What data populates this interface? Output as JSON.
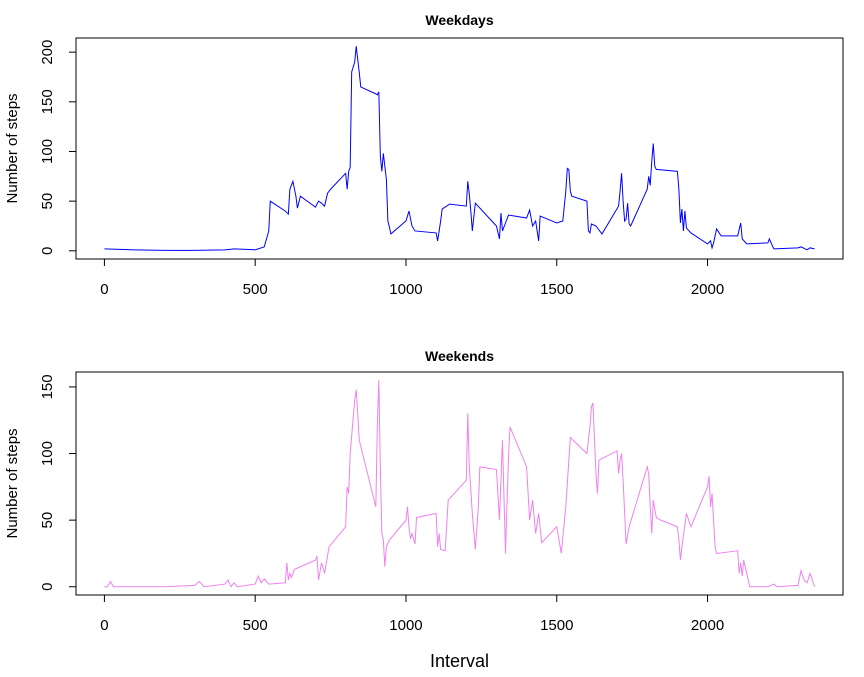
{
  "chart_data": [
    {
      "type": "line",
      "title": "Weekdays",
      "y_label": "Number of steps",
      "color": "#0000ff",
      "x": [
        0,
        100,
        200,
        300,
        400,
        430,
        500,
        530,
        545,
        550,
        600,
        610,
        615,
        625,
        635,
        640,
        650,
        700,
        710,
        720,
        730,
        740,
        750,
        800,
        805,
        810,
        815,
        820,
        830,
        835,
        845,
        850,
        900,
        905,
        910,
        915,
        920,
        925,
        935,
        940,
        945,
        950,
        1000,
        1010,
        1020,
        1030,
        1100,
        1105,
        1115,
        1120,
        1145,
        1200,
        1205,
        1210,
        1215,
        1220,
        1230,
        1300,
        1310,
        1315,
        1320,
        1330,
        1340,
        1400,
        1410,
        1420,
        1430,
        1440,
        1445,
        1500,
        1520,
        1530,
        1535,
        1540,
        1545,
        1550,
        1600,
        1605,
        1610,
        1615,
        1630,
        1650,
        1705,
        1710,
        1715,
        1720,
        1725,
        1730,
        1735,
        1740,
        1745,
        1800,
        1805,
        1810,
        1815,
        1820,
        1825,
        1830,
        1900,
        1905,
        1910,
        1915,
        1920,
        1925,
        1930,
        1945,
        2000,
        2010,
        2015,
        2020,
        2030,
        2045,
        2100,
        2110,
        2115,
        2130,
        2200,
        2205,
        2215,
        2220,
        2300,
        2310,
        2330,
        2340,
        2355
      ],
      "values": [
        2,
        1,
        0.5,
        0.5,
        1,
        2,
        1,
        4,
        20,
        50,
        40,
        37,
        62,
        70,
        55,
        43,
        55,
        44,
        50,
        48,
        45,
        58,
        62,
        78,
        62,
        80,
        84,
        180,
        190,
        206,
        180,
        165,
        158,
        157,
        160,
        95,
        80,
        98,
        72,
        30,
        24,
        17,
        30,
        40,
        25,
        20,
        18,
        10,
        30,
        42,
        47,
        45,
        70,
        57,
        40,
        20,
        48,
        25,
        12,
        38,
        20,
        28,
        36,
        33,
        41,
        25,
        30,
        10,
        35,
        28,
        30,
        60,
        83,
        82,
        60,
        55,
        50,
        20,
        18,
        27,
        25,
        17,
        45,
        60,
        78,
        50,
        30,
        32,
        48,
        27,
        25,
        62,
        75,
        66,
        90,
        108,
        85,
        82,
        80,
        62,
        28,
        42,
        20,
        40,
        23,
        18,
        7,
        10,
        3,
        8,
        22,
        15,
        15,
        28,
        12,
        7,
        8,
        12,
        5,
        2,
        3,
        4,
        1,
        3,
        2
      ],
      "xlim": [
        -94.2,
        2449.2
      ],
      "ylim": [
        -8.24,
        214.24
      ],
      "xticks": [
        0,
        500,
        1000,
        1500,
        2000
      ],
      "yticks": [
        0,
        50,
        100,
        150,
        200
      ]
    },
    {
      "type": "line",
      "title": "Weekends",
      "y_label": "Number of steps",
      "x_label": "Interval",
      "color": "#ee82ee",
      "x": [
        0,
        10,
        20,
        30,
        100,
        200,
        300,
        315,
        330,
        400,
        410,
        420,
        430,
        440,
        500,
        510,
        520,
        530,
        545,
        600,
        605,
        610,
        615,
        620,
        630,
        700,
        705,
        710,
        720,
        730,
        745,
        800,
        805,
        810,
        815,
        830,
        835,
        840,
        845,
        900,
        905,
        910,
        915,
        920,
        925,
        930,
        935,
        945,
        1000,
        1005,
        1010,
        1015,
        1020,
        1030,
        1035,
        1100,
        1105,
        1110,
        1115,
        1130,
        1140,
        1200,
        1205,
        1210,
        1220,
        1230,
        1240,
        1245,
        1300,
        1310,
        1320,
        1330,
        1340,
        1345,
        1400,
        1405,
        1410,
        1420,
        1430,
        1440,
        1450,
        1500,
        1515,
        1530,
        1545,
        1600,
        1605,
        1610,
        1615,
        1620,
        1630,
        1635,
        1640,
        1700,
        1705,
        1710,
        1715,
        1720,
        1730,
        1740,
        1800,
        1805,
        1810,
        1815,
        1820,
        1830,
        1845,
        1900,
        1905,
        1910,
        1915,
        1930,
        1945,
        2000,
        2005,
        2010,
        2015,
        2020,
        2025,
        2030,
        2100,
        2105,
        2110,
        2115,
        2120,
        2130,
        2140,
        2200,
        2220,
        2230,
        2300,
        2310,
        2320,
        2330,
        2340,
        2355
      ],
      "values": [
        0,
        0,
        4,
        0,
        0,
        0,
        1,
        4,
        0,
        2,
        5,
        0,
        3,
        0,
        2,
        8,
        3,
        6,
        2,
        3,
        18,
        5,
        10,
        7,
        13,
        20,
        23,
        5,
        18,
        10,
        30,
        45,
        75,
        70,
        100,
        140,
        148,
        130,
        110,
        60,
        120,
        155,
        90,
        40,
        35,
        15,
        30,
        35,
        50,
        60,
        45,
        36,
        40,
        32,
        52,
        55,
        30,
        40,
        28,
        27,
        65,
        80,
        130,
        90,
        55,
        28,
        60,
        90,
        88,
        50,
        110,
        25,
        98,
        120,
        90,
        70,
        50,
        65,
        40,
        55,
        33,
        45,
        25,
        60,
        112,
        100,
        110,
        120,
        135,
        138,
        85,
        70,
        95,
        102,
        85,
        95,
        100,
        80,
        32,
        45,
        90,
        85,
        60,
        40,
        65,
        52,
        50,
        45,
        35,
        20,
        30,
        55,
        45,
        75,
        83,
        60,
        70,
        50,
        30,
        25,
        27,
        10,
        18,
        8,
        20,
        10,
        0,
        0,
        2,
        0,
        1,
        12,
        5,
        3,
        10,
        0
      ],
      "xlim": [
        -94.2,
        2449.2
      ],
      "ylim": [
        -6.2,
        161.2
      ],
      "xticks": [
        0,
        500,
        1000,
        1500,
        2000
      ],
      "yticks": [
        0,
        50,
        100,
        150
      ]
    }
  ]
}
